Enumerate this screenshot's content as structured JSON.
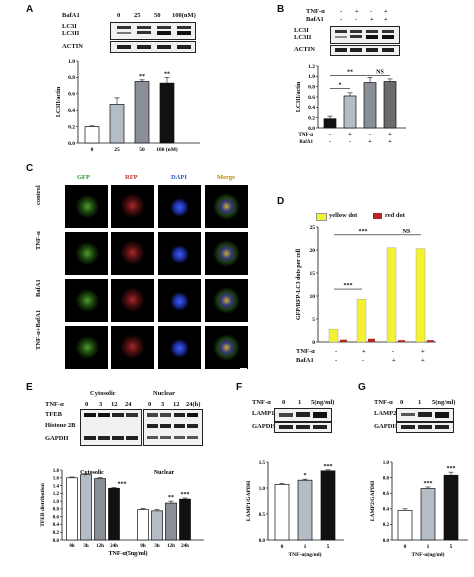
{
  "panels": {
    "A": {
      "label": "A",
      "treatment_label": "BafA1",
      "doses": [
        "0",
        "25",
        "50",
        "100(nM)"
      ],
      "blot_rows": [
        "LC3I",
        "LC3II",
        "ACTIN"
      ],
      "ylabel": "LC3II/actin",
      "yticks": [
        "0.0",
        "0.2",
        "0.4",
        "0.6",
        "0.8",
        "1.0"
      ],
      "xticks": [
        "0",
        "25",
        "50",
        "100 (nM)"
      ],
      "sig": [
        "",
        "",
        "**",
        "**"
      ]
    },
    "B": {
      "label": "B",
      "row1": "TNF-α",
      "row2": "BafA1",
      "signs1": [
        "-",
        "+",
        "-",
        "+"
      ],
      "signs2": [
        "-",
        "-",
        "+",
        "+"
      ],
      "blot_rows": [
        "LC3I",
        "LC3II",
        "ACTIN"
      ],
      "ylabel": "LC3II/actin",
      "yticks": [
        "0.0",
        "0.2",
        "0.4",
        "0.6",
        "0.8",
        "1.0",
        "1.2"
      ],
      "sig": [
        "*",
        "**",
        "NS"
      ]
    },
    "C": {
      "label": "C",
      "columns": [
        "GFP",
        "RFP",
        "DAPI",
        "Merge"
      ],
      "rows": [
        "control",
        "TNF-α",
        "BafA1",
        "TNF-α+BafA1"
      ],
      "scale": "10um"
    },
    "D": {
      "label": "D",
      "legend": [
        "yellow dot",
        "red dot"
      ],
      "ylabel": "GFP/RFP-LC3 dots per cell",
      "yticks": [
        "0",
        "5",
        "10",
        "15",
        "20",
        "25"
      ],
      "row1": "TNF-α",
      "row2": "BafA1",
      "signs1": [
        "-",
        "+",
        "-",
        "+"
      ],
      "signs2": [
        "-",
        "-",
        "+",
        "+"
      ],
      "sig": [
        "***",
        "***",
        "NS"
      ]
    },
    "E": {
      "label": "E",
      "groups": [
        "Cytosolic",
        "Nuclear"
      ],
      "row_label": "TNF-α",
      "times_cyto": [
        "0",
        "3",
        "12",
        "24"
      ],
      "times_nuc": [
        "0",
        "3",
        "12",
        "24(h)"
      ],
      "blot_rows": [
        "TFEB",
        "Histone 2B",
        "GAPDH"
      ],
      "ylabel": "TFEB distribution",
      "yticks": [
        "0.0",
        "0.2",
        "0.4",
        "0.6",
        "0.8",
        "1.0",
        "1.2",
        "1.4",
        "1.6",
        "1.8"
      ],
      "xticks": [
        "0h",
        "3h",
        "12h",
        "24h",
        "0h",
        "3h",
        "12h",
        "24h"
      ],
      "xlabel": "TNF-α(5ng/ml)",
      "sig_cyto": [
        "",
        "",
        "",
        "***"
      ],
      "sig_nuc": [
        "",
        "",
        "**",
        "***"
      ]
    },
    "F": {
      "label": "F",
      "row_label": "TNF-α",
      "doses": [
        "0",
        "1",
        "5(ng/ml)"
      ],
      "blot_rows": [
        "LAMP1",
        "GAPDH"
      ],
      "ylabel": "LAMP1/GAPDH",
      "yticks": [
        "0.0",
        "0.5",
        "1.0",
        "1.5"
      ],
      "xticks": [
        "0",
        "1",
        "5"
      ],
      "xlabel": "TNF-α(ng/ml)",
      "sig": [
        "",
        "*",
        "***"
      ]
    },
    "G": {
      "label": "G",
      "row_label": "TNF-α",
      "doses": [
        "0",
        "1",
        "5(ng/ml)"
      ],
      "blot_rows": [
        "LAMP2",
        "GAPDH"
      ],
      "ylabel": "LAMP2/GAPDH",
      "yticks": [
        "0.0",
        "0.2",
        "0.4",
        "0.6",
        "0.8",
        "1.0"
      ],
      "xticks": [
        "0",
        "1",
        "5"
      ],
      "xlabel": "TNF-α(ng/ml)",
      "sig": [
        "",
        "***",
        "***"
      ]
    }
  },
  "colors": {
    "white_bar": "#ffffff",
    "light_gray": "#b4bcc6",
    "mid_gray": "#8a8f96",
    "dark_gray": "#6b6b6b",
    "black": "#111111",
    "yellow": "#f2f233",
    "red": "#b0281e"
  },
  "chart_data": [
    {
      "panel": "A",
      "type": "bar",
      "categories": [
        "0",
        "25",
        "50",
        "100 (nM)"
      ],
      "values": [
        0.2,
        0.47,
        0.75,
        0.73
      ],
      "errors": [
        0.01,
        0.08,
        0.02,
        0.07
      ],
      "ylabel": "LC3II/actin",
      "ylim": [
        0,
        1.0
      ]
    },
    {
      "panel": "B",
      "type": "bar",
      "categories": [
        "-/-",
        "+/-",
        "-/+",
        "+/+"
      ],
      "values": [
        0.18,
        0.62,
        0.88,
        0.9
      ],
      "errors": [
        0.05,
        0.06,
        0.1,
        0.05
      ],
      "ylabel": "LC3II/actin",
      "ylim": [
        0,
        1.2
      ]
    },
    {
      "panel": "D",
      "type": "bar",
      "categories": [
        "-/-",
        "+/-",
        "-/+",
        "+/+"
      ],
      "series": [
        {
          "name": "yellow dot",
          "values": [
            2.8,
            9.3,
            20.5,
            20.3
          ]
        },
        {
          "name": "red dot",
          "values": [
            0.5,
            0.7,
            0.4,
            0.4
          ]
        }
      ],
      "ylabel": "GFP/RFP-LC3 dots per cell",
      "ylim": [
        0,
        25
      ]
    },
    {
      "panel": "E",
      "type": "bar",
      "categories": [
        "0h",
        "3h",
        "12h",
        "24h",
        "0h",
        "3h",
        "12h",
        "24h"
      ],
      "values": [
        1.6,
        1.68,
        1.58,
        1.33,
        0.78,
        0.75,
        0.95,
        1.05
      ],
      "errors": [
        0.02,
        0.03,
        0.02,
        0.02,
        0.03,
        0.03,
        0.05,
        0.03
      ],
      "ylabel": "TFEB distribution",
      "xlabel": "TNF-α(5ng/ml)",
      "ylim": [
        0,
        1.8
      ]
    },
    {
      "panel": "F",
      "type": "bar",
      "categories": [
        "0",
        "1",
        "5"
      ],
      "values": [
        1.07,
        1.15,
        1.33
      ],
      "errors": [
        0.02,
        0.02,
        0.02
      ],
      "ylabel": "LAMP1/GAPDH",
      "xlabel": "TNF-α(ng/ml)",
      "ylim": [
        0,
        1.5
      ]
    },
    {
      "panel": "G",
      "type": "bar",
      "categories": [
        "0",
        "1",
        "5"
      ],
      "values": [
        0.38,
        0.66,
        0.83
      ],
      "errors": [
        0.02,
        0.02,
        0.04
      ],
      "ylabel": "LAMP2/GAPDH",
      "xlabel": "TNF-α(ng/ml)",
      "ylim": [
        0,
        1.0
      ]
    }
  ]
}
